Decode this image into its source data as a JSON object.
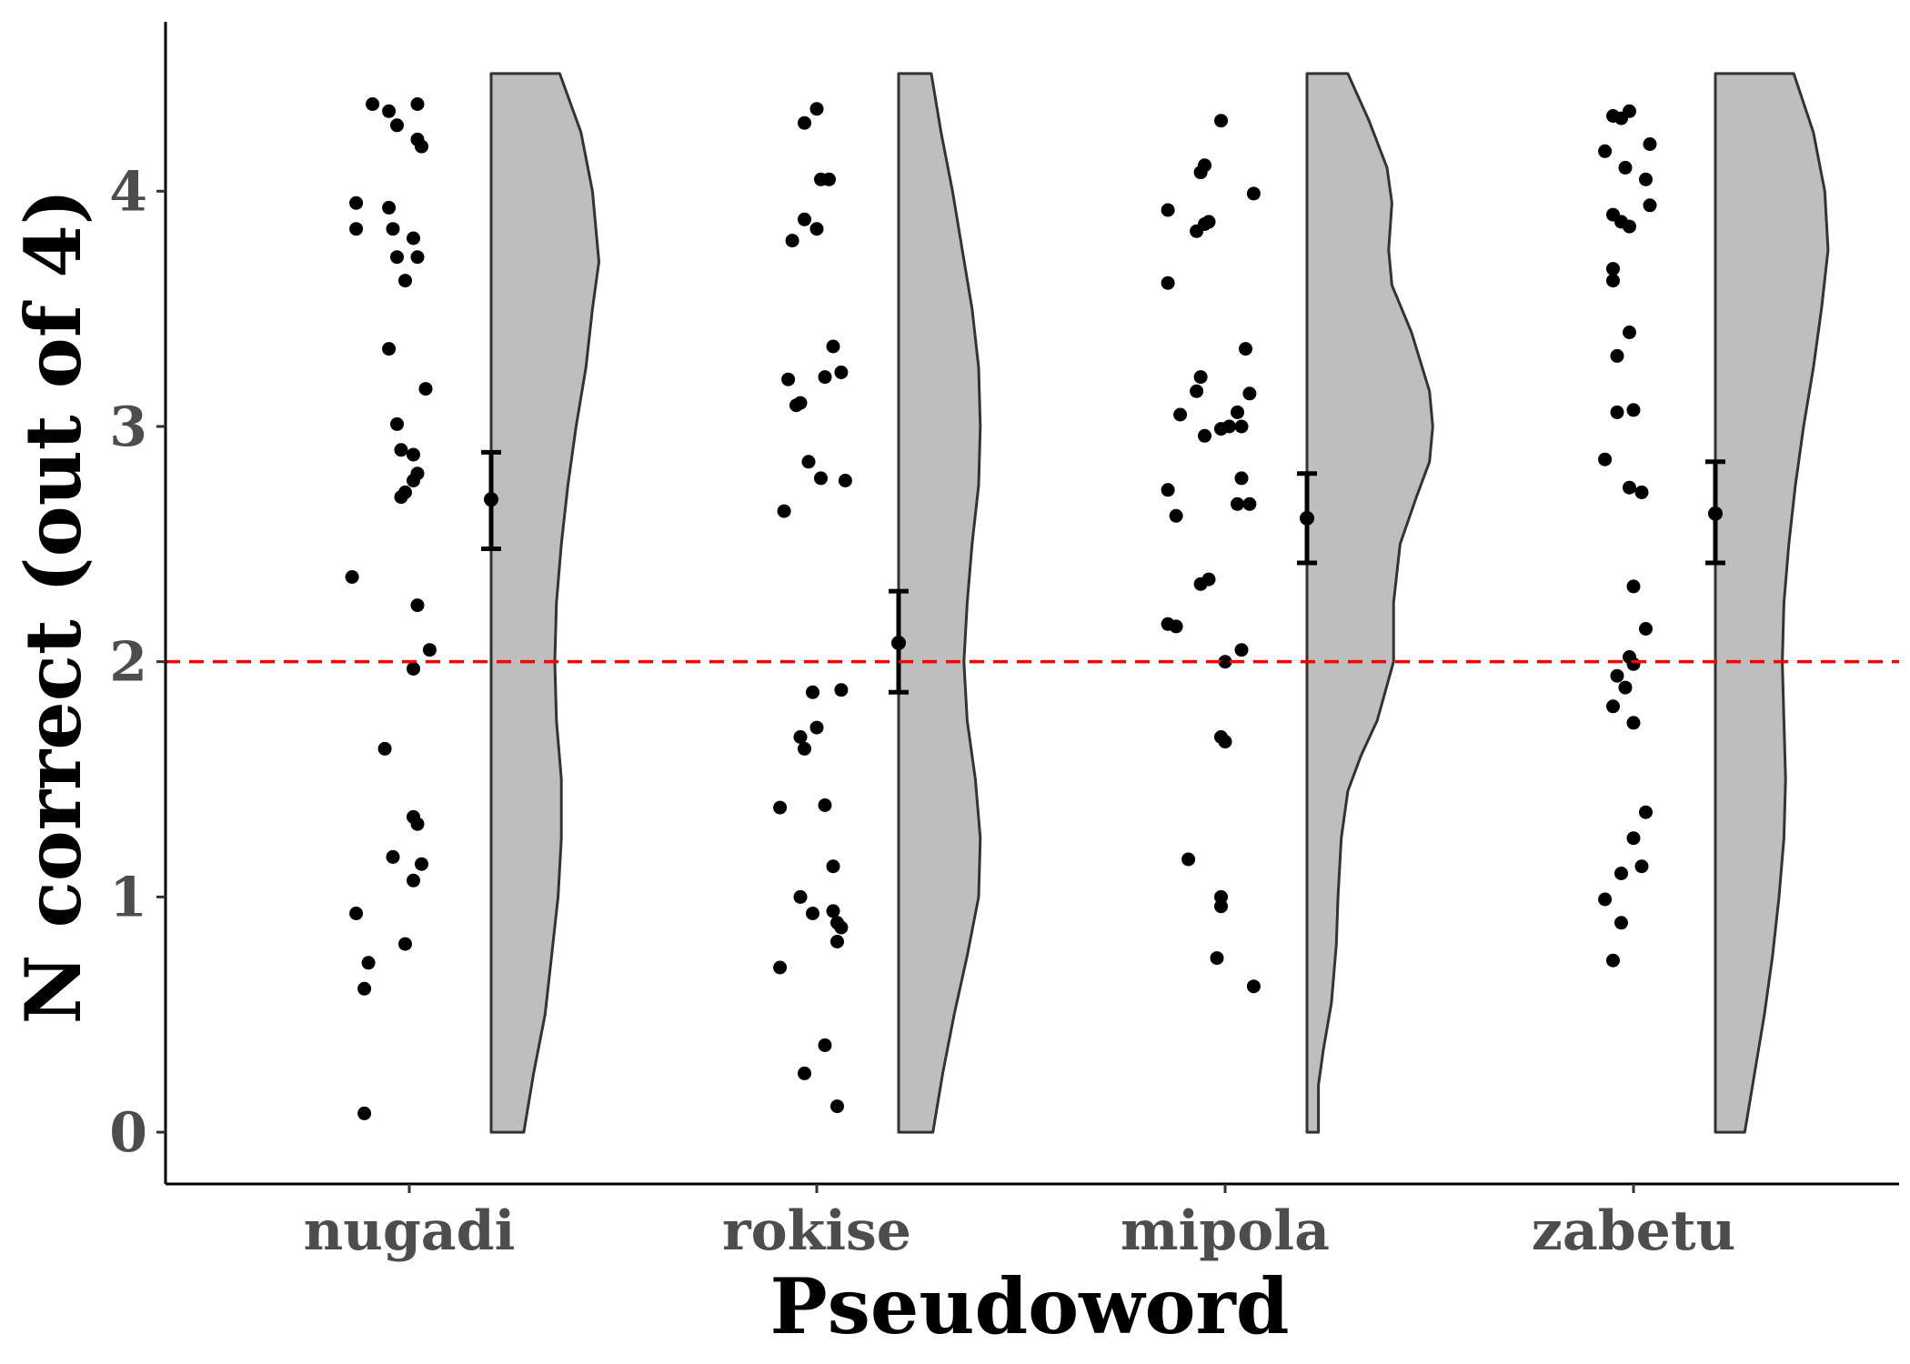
{
  "chart_data": {
    "type": "raincloud",
    "xlabel": "Pseudoword",
    "ylabel": "N correct (out of 4)",
    "ylim": [
      -0.22,
      4.72
    ],
    "yticks": [
      0,
      1,
      2,
      3,
      4
    ],
    "reference_line": {
      "y": 2,
      "style": "dashed",
      "color": "#ff0000"
    },
    "grid": false,
    "legend": "none",
    "colors": {
      "violin_fill": "#bebebe",
      "violin_stroke": "#333333",
      "points": "#000000",
      "error_bars": "#000000"
    },
    "categories": [
      "nugadi",
      "rokise",
      "mipola",
      "zabetu"
    ],
    "groups": [
      {
        "label": "nugadi",
        "mean": 2.69,
        "ci": [
          2.48,
          2.89
        ],
        "points": [
          [
            -0.09,
            4.37
          ],
          [
            -0.05,
            4.34
          ],
          [
            -0.03,
            4.28
          ],
          [
            0.02,
            4.37
          ],
          [
            0.02,
            4.22
          ],
          [
            0.03,
            4.19
          ],
          [
            -0.13,
            3.95
          ],
          [
            -0.05,
            3.93
          ],
          [
            -0.13,
            3.84
          ],
          [
            -0.04,
            3.84
          ],
          [
            0.01,
            3.8
          ],
          [
            -0.03,
            3.72
          ],
          [
            0.02,
            3.72
          ],
          [
            -0.01,
            3.62
          ],
          [
            -0.05,
            3.33
          ],
          [
            0.04,
            3.16
          ],
          [
            -0.03,
            3.01
          ],
          [
            -0.02,
            2.9
          ],
          [
            0.01,
            2.88
          ],
          [
            0.02,
            2.8
          ],
          [
            0.01,
            2.77
          ],
          [
            -0.01,
            2.72
          ],
          [
            -0.02,
            2.7
          ],
          [
            -0.14,
            2.36
          ],
          [
            0.02,
            2.24
          ],
          [
            0.05,
            2.05
          ],
          [
            0.01,
            1.97
          ],
          [
            -0.06,
            1.63
          ],
          [
            0.01,
            1.34
          ],
          [
            0.02,
            1.31
          ],
          [
            -0.04,
            1.17
          ],
          [
            0.03,
            1.14
          ],
          [
            0.01,
            1.07
          ],
          [
            -0.13,
            0.93
          ],
          [
            -0.01,
            0.8
          ],
          [
            -0.1,
            0.72
          ],
          [
            -0.11,
            0.61
          ],
          [
            -0.11,
            0.08
          ]
        ],
        "density": [
          [
            0.0,
            0.2
          ],
          [
            0.25,
            0.26
          ],
          [
            0.5,
            0.33
          ],
          [
            0.75,
            0.37
          ],
          [
            1.0,
            0.41
          ],
          [
            1.25,
            0.43
          ],
          [
            1.5,
            0.43
          ],
          [
            1.75,
            0.4
          ],
          [
            2.0,
            0.39
          ],
          [
            2.25,
            0.4
          ],
          [
            2.5,
            0.43
          ],
          [
            2.75,
            0.47
          ],
          [
            3.0,
            0.52
          ],
          [
            3.25,
            0.58
          ],
          [
            3.5,
            0.62
          ],
          [
            3.7,
            0.66
          ],
          [
            4.0,
            0.62
          ],
          [
            4.25,
            0.55
          ],
          [
            4.5,
            0.42
          ]
        ]
      },
      {
        "label": "rokise",
        "mean": 2.08,
        "ci": [
          1.87,
          2.3
        ],
        "points": [
          [
            -0.03,
            4.29
          ],
          [
            0.0,
            4.35
          ],
          [
            0.01,
            4.05
          ],
          [
            0.03,
            4.05
          ],
          [
            -0.03,
            3.88
          ],
          [
            0.0,
            3.84
          ],
          [
            -0.06,
            3.79
          ],
          [
            0.04,
            3.34
          ],
          [
            -0.07,
            3.2
          ],
          [
            0.02,
            3.21
          ],
          [
            0.06,
            3.23
          ],
          [
            -0.04,
            3.1
          ],
          [
            -0.05,
            3.09
          ],
          [
            -0.02,
            2.85
          ],
          [
            0.01,
            2.78
          ],
          [
            0.07,
            2.77
          ],
          [
            -0.08,
            2.64
          ],
          [
            -0.01,
            1.87
          ],
          [
            0.06,
            1.88
          ],
          [
            0.0,
            1.72
          ],
          [
            -0.04,
            1.68
          ],
          [
            -0.03,
            1.63
          ],
          [
            -0.09,
            1.38
          ],
          [
            0.02,
            1.39
          ],
          [
            0.04,
            1.13
          ],
          [
            -0.04,
            1.0
          ],
          [
            -0.01,
            0.93
          ],
          [
            0.04,
            0.94
          ],
          [
            0.05,
            0.89
          ],
          [
            0.06,
            0.87
          ],
          [
            0.05,
            0.81
          ],
          [
            -0.09,
            0.7
          ],
          [
            0.02,
            0.37
          ],
          [
            -0.03,
            0.25
          ],
          [
            0.05,
            0.11
          ]
        ],
        "density": [
          [
            0.0,
            0.21
          ],
          [
            0.25,
            0.27
          ],
          [
            0.5,
            0.34
          ],
          [
            0.75,
            0.42
          ],
          [
            1.0,
            0.49
          ],
          [
            1.25,
            0.5
          ],
          [
            1.5,
            0.47
          ],
          [
            1.75,
            0.42
          ],
          [
            2.0,
            0.4
          ],
          [
            2.25,
            0.42
          ],
          [
            2.5,
            0.45
          ],
          [
            2.75,
            0.49
          ],
          [
            3.0,
            0.5
          ],
          [
            3.25,
            0.49
          ],
          [
            3.5,
            0.45
          ],
          [
            3.75,
            0.39
          ],
          [
            4.0,
            0.33
          ],
          [
            4.25,
            0.26
          ],
          [
            4.5,
            0.2
          ]
        ]
      },
      {
        "label": "mipola",
        "mean": 2.61,
        "ci": [
          2.42,
          2.8
        ],
        "points": [
          [
            -0.01,
            4.3
          ],
          [
            -0.05,
            4.11
          ],
          [
            -0.06,
            4.08
          ],
          [
            0.07,
            3.99
          ],
          [
            -0.14,
            3.92
          ],
          [
            -0.04,
            3.87
          ],
          [
            -0.05,
            3.86
          ],
          [
            -0.07,
            3.83
          ],
          [
            -0.14,
            3.61
          ],
          [
            0.05,
            3.33
          ],
          [
            -0.06,
            3.21
          ],
          [
            -0.07,
            3.15
          ],
          [
            0.06,
            3.14
          ],
          [
            0.03,
            3.06
          ],
          [
            -0.11,
            3.05
          ],
          [
            0.01,
            3.0
          ],
          [
            -0.01,
            2.99
          ],
          [
            0.04,
            3.0
          ],
          [
            -0.05,
            2.96
          ],
          [
            0.04,
            2.78
          ],
          [
            -0.14,
            2.73
          ],
          [
            0.06,
            2.67
          ],
          [
            0.03,
            2.67
          ],
          [
            -0.12,
            2.62
          ],
          [
            -0.04,
            2.35
          ],
          [
            -0.06,
            2.33
          ],
          [
            -0.14,
            2.16
          ],
          [
            -0.12,
            2.15
          ],
          [
            0.04,
            2.05
          ],
          [
            0.0,
            2.0
          ],
          [
            -0.01,
            1.68
          ],
          [
            0.0,
            1.66
          ],
          [
            -0.09,
            1.16
          ],
          [
            -0.01,
            1.0
          ],
          [
            -0.01,
            0.96
          ],
          [
            -0.02,
            0.74
          ],
          [
            0.07,
            0.62
          ]
        ],
        "density": [
          [
            0.0,
            0.07
          ],
          [
            0.2,
            0.07
          ],
          [
            0.35,
            0.1
          ],
          [
            0.55,
            0.15
          ],
          [
            0.8,
            0.18
          ],
          [
            1.0,
            0.19
          ],
          [
            1.25,
            0.21
          ],
          [
            1.45,
            0.25
          ],
          [
            1.6,
            0.33
          ],
          [
            1.75,
            0.43
          ],
          [
            2.0,
            0.53
          ],
          [
            2.25,
            0.53
          ],
          [
            2.5,
            0.57
          ],
          [
            2.7,
            0.67
          ],
          [
            2.85,
            0.75
          ],
          [
            3.0,
            0.77
          ],
          [
            3.15,
            0.75
          ],
          [
            3.4,
            0.64
          ],
          [
            3.6,
            0.52
          ],
          [
            3.75,
            0.5
          ],
          [
            3.95,
            0.52
          ],
          [
            4.1,
            0.49
          ],
          [
            4.3,
            0.38
          ],
          [
            4.5,
            0.25
          ]
        ]
      },
      {
        "label": "zabetu",
        "mean": 2.63,
        "ci": [
          2.42,
          2.85
        ],
        "points": [
          [
            -0.05,
            4.32
          ],
          [
            -0.03,
            4.31
          ],
          [
            -0.01,
            4.34
          ],
          [
            -0.07,
            4.17
          ],
          [
            0.04,
            4.2
          ],
          [
            -0.02,
            4.1
          ],
          [
            0.03,
            4.05
          ],
          [
            -0.05,
            3.9
          ],
          [
            -0.03,
            3.87
          ],
          [
            -0.01,
            3.85
          ],
          [
            0.04,
            3.94
          ],
          [
            -0.05,
            3.67
          ],
          [
            -0.05,
            3.62
          ],
          [
            -0.01,
            3.4
          ],
          [
            -0.04,
            3.3
          ],
          [
            -0.04,
            3.06
          ],
          [
            0.0,
            3.07
          ],
          [
            -0.07,
            2.86
          ],
          [
            -0.01,
            2.74
          ],
          [
            0.02,
            2.72
          ],
          [
            0.0,
            2.32
          ],
          [
            0.03,
            2.14
          ],
          [
            -0.01,
            2.02
          ],
          [
            0.0,
            1.99
          ],
          [
            -0.04,
            1.94
          ],
          [
            -0.02,
            1.89
          ],
          [
            -0.05,
            1.81
          ],
          [
            0.0,
            1.74
          ],
          [
            0.03,
            1.36
          ],
          [
            0.0,
            1.25
          ],
          [
            -0.03,
            1.1
          ],
          [
            0.02,
            1.13
          ],
          [
            -0.07,
            0.99
          ],
          [
            -0.03,
            0.89
          ],
          [
            -0.05,
            0.73
          ]
        ],
        "density": [
          [
            0.0,
            0.18
          ],
          [
            0.25,
            0.24
          ],
          [
            0.5,
            0.3
          ],
          [
            0.75,
            0.35
          ],
          [
            1.0,
            0.39
          ],
          [
            1.25,
            0.42
          ],
          [
            1.5,
            0.43
          ],
          [
            1.75,
            0.42
          ],
          [
            2.0,
            0.41
          ],
          [
            2.25,
            0.42
          ],
          [
            2.5,
            0.45
          ],
          [
            2.75,
            0.49
          ],
          [
            3.0,
            0.54
          ],
          [
            3.25,
            0.6
          ],
          [
            3.5,
            0.65
          ],
          [
            3.75,
            0.69
          ],
          [
            4.0,
            0.67
          ],
          [
            4.25,
            0.6
          ],
          [
            4.5,
            0.48
          ]
        ]
      }
    ]
  }
}
